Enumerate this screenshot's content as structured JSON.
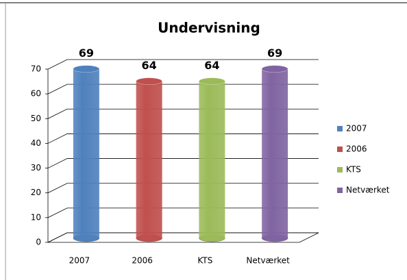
{
  "chart_data": {
    "type": "bar3d",
    "title": "Undervisning",
    "categories": [
      "2007",
      "2006",
      "KTS",
      "Netværket"
    ],
    "values": [
      69,
      64,
      64,
      69
    ],
    "colors": [
      "#4f81bd",
      "#c0504d",
      "#9bbb59",
      "#8064a2"
    ],
    "ylim": [
      0,
      70
    ],
    "yticks": [
      0,
      10,
      20,
      30,
      40,
      50,
      60,
      70
    ],
    "grid": true,
    "legend": "right",
    "data_labels": true
  }
}
